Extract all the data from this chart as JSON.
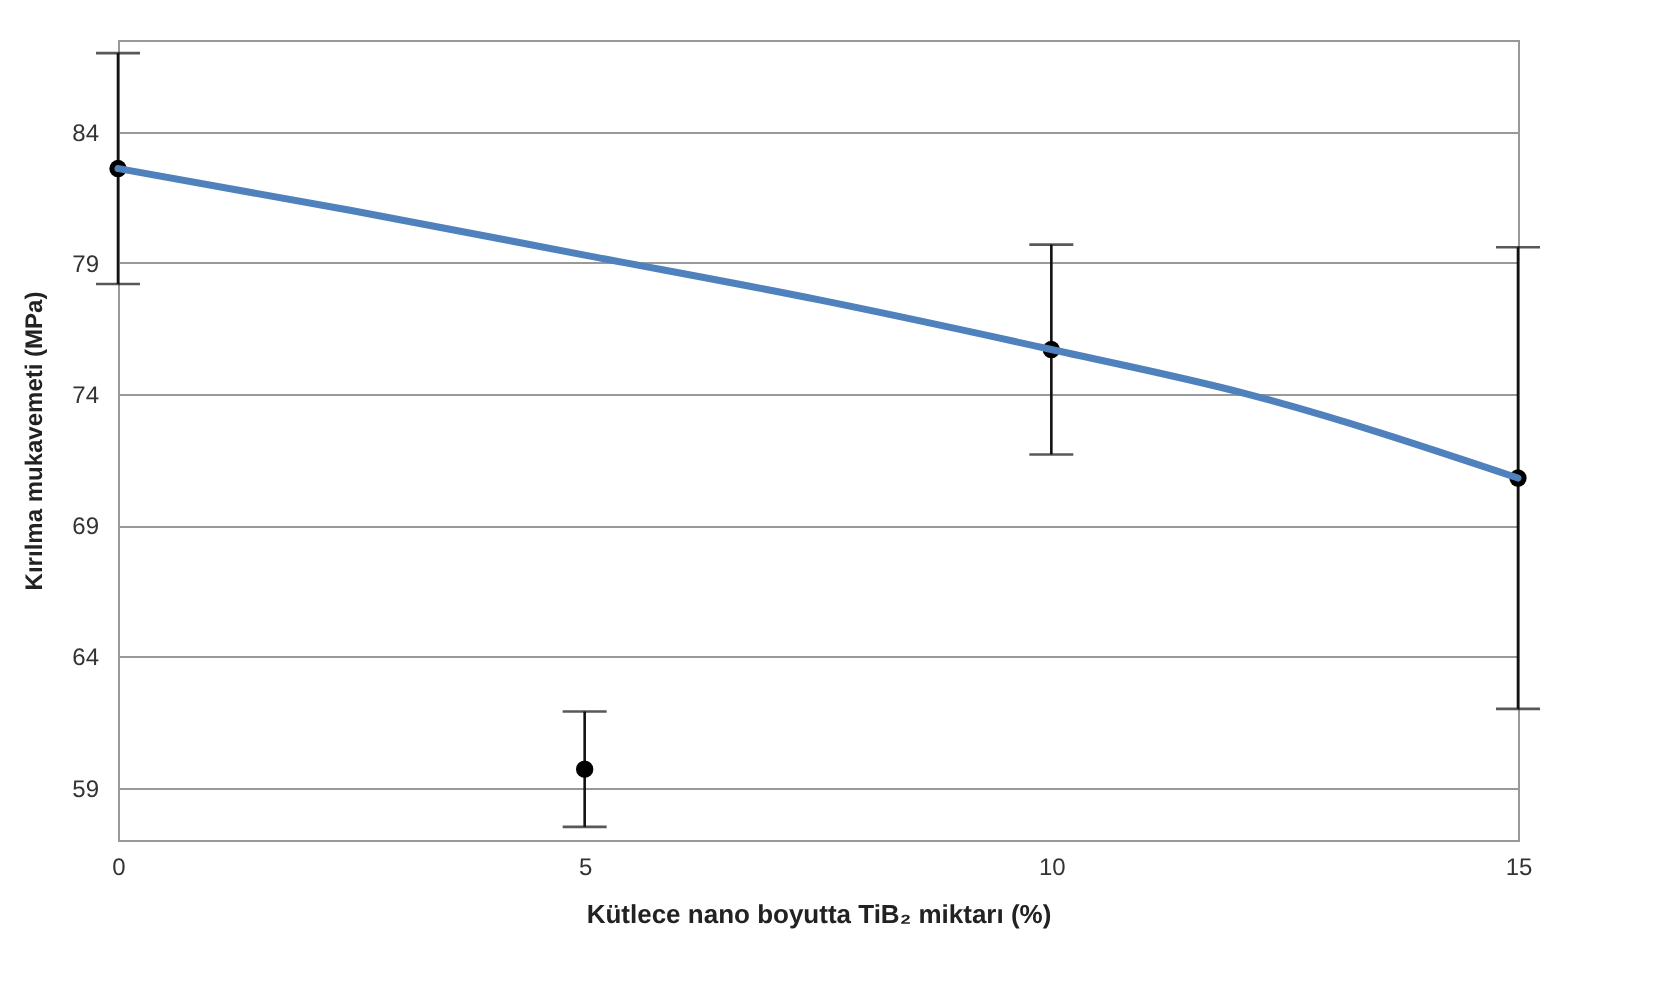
{
  "chart_data": {
    "type": "scatter",
    "xlabel": "Kütlece nano boyutta TiB₂ miktarı (%)",
    "ylabel": "Kırılma mukavemeti (MPa)",
    "x": [
      0,
      5,
      10,
      15
    ],
    "series": [
      {
        "color": "#000000",
        "marker": "circle",
        "values": [
          82.6,
          59.7,
          75.7,
          70.8
        ],
        "errors": [
          4.4,
          2.2,
          4.0,
          8.8
        ]
      },
      {
        "type": "line",
        "color": "#4f81bd",
        "marker": "none",
        "x": [
          0,
          2.5,
          5,
          7.5,
          10,
          12.1,
          15
        ],
        "values": [
          82.6,
          81.0,
          79.3,
          77.6,
          75.7,
          74.0,
          70.8
        ]
      }
    ],
    "xlim": [
      0,
      15
    ],
    "xticks": [
      0,
      5,
      10,
      15
    ],
    "ylim": [
      57,
      87.5
    ],
    "yticks": [
      59,
      64,
      69,
      74,
      79,
      84
    ],
    "grid": "y"
  }
}
